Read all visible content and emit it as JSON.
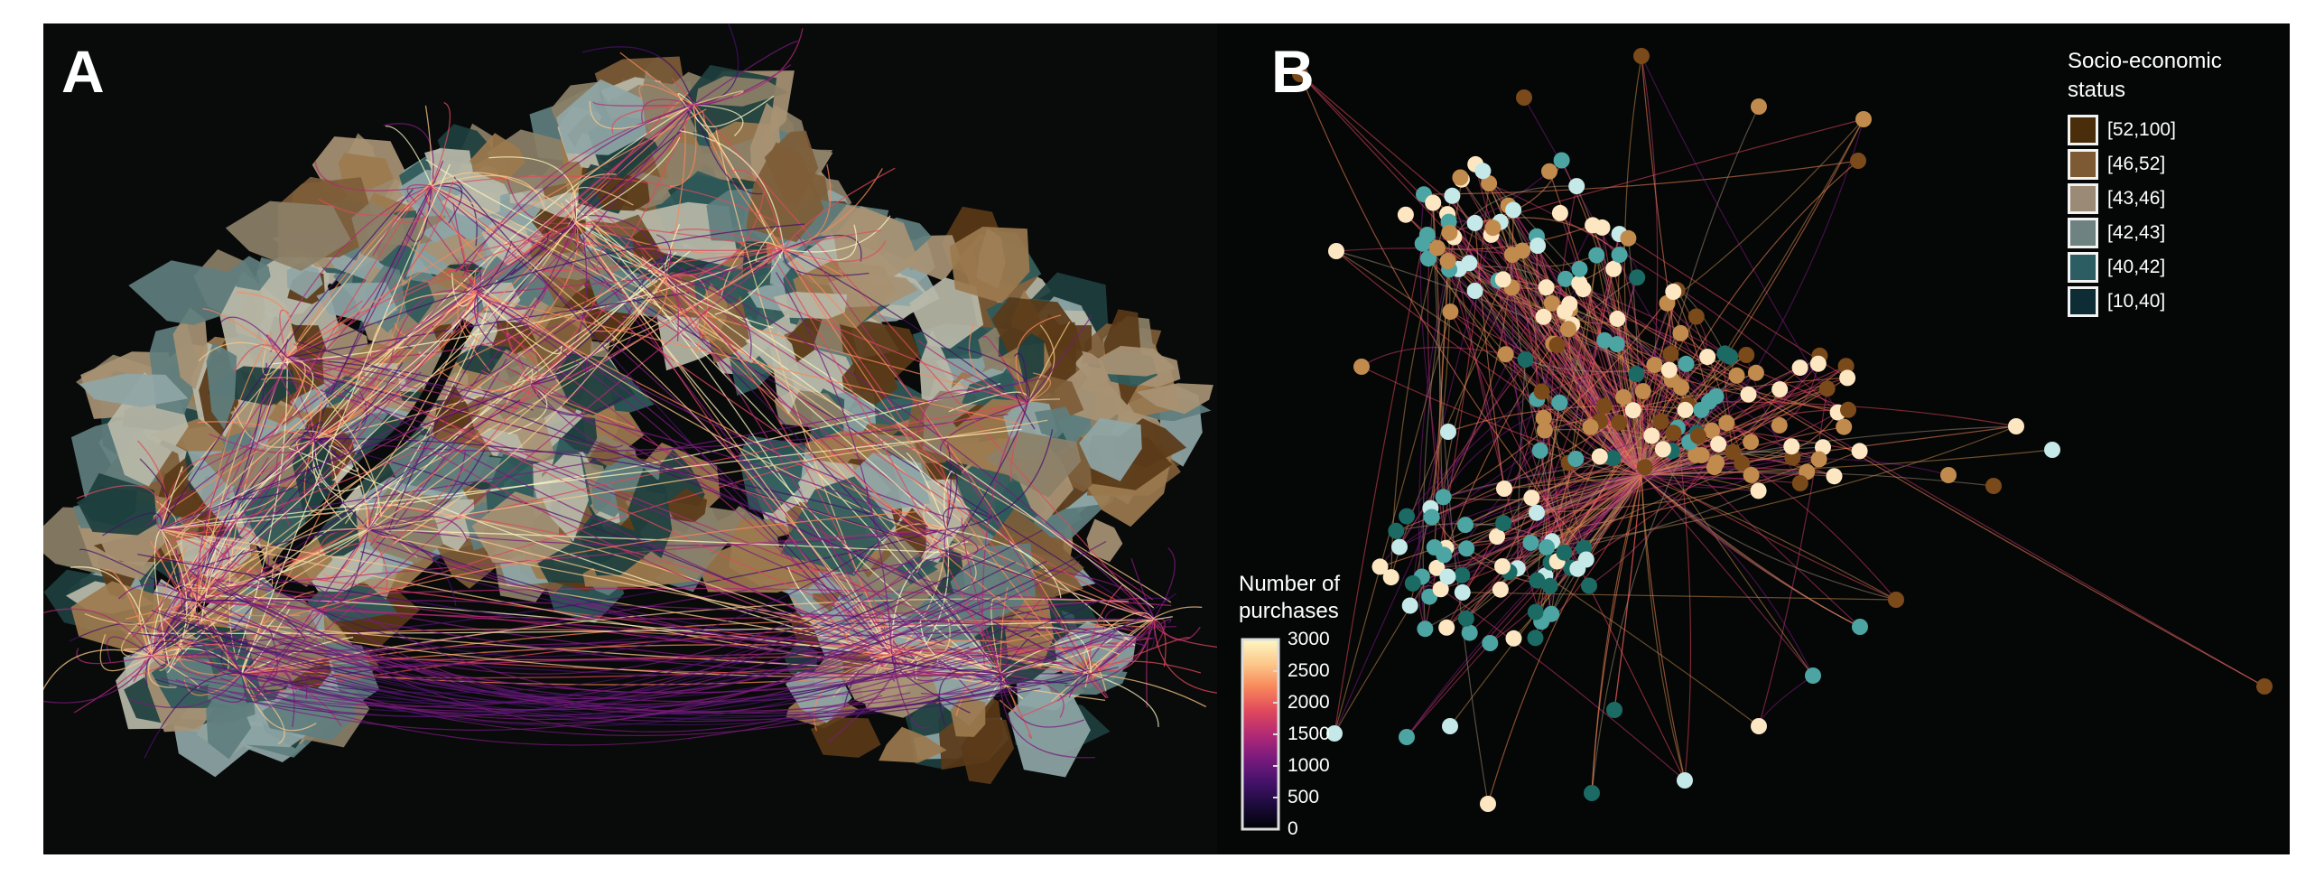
{
  "panels": [
    {
      "letter": "A",
      "name": "map-panel"
    },
    {
      "letter": "B",
      "name": "network-panel"
    }
  ],
  "colorbar": {
    "title_line1": "Number of",
    "title_line2": "purchases",
    "ticks": [
      "3000",
      "2500",
      "2000",
      "1500",
      "1000",
      "500",
      "0"
    ],
    "min": 0,
    "max": 3000,
    "colormap": [
      "#fdf8c4",
      "#fcc98c",
      "#f8885a",
      "#e0495c",
      "#b22a74",
      "#7a1b7e",
      "#45126b",
      "#1b0b3a",
      "#000004"
    ]
  },
  "legend": {
    "title_line1": "Socio-economic",
    "title_line2": "status",
    "entries": [
      {
        "label": "[52,100]",
        "color": "#4a2e0c"
      },
      {
        "label": "[46,52]",
        "color": "#7d5a33"
      },
      {
        "label": "[43,46]",
        "color": "#9b8b76"
      },
      {
        "label": "[42,43]",
        "color": "#6e8281"
      },
      {
        "label": "[40,42]",
        "color": "#2c5d63"
      },
      {
        "label": "[10,40]",
        "color": "#0e2c34"
      }
    ]
  },
  "node_colors": {
    "dark_brown": "#7a4a1a",
    "brown": "#c18b4e",
    "cream": "#fde7c2",
    "light_cyan": "#c5e9e8",
    "teal": "#4ca5a3",
    "dark_teal": "#1c6a64"
  },
  "region_colors": [
    "#5a3a18",
    "#7e5d38",
    "#a89274",
    "#8c8068",
    "#8fa6a6",
    "#5f7e7e",
    "#2f5a5a",
    "#1d3f3e",
    "#b8b8a8",
    "#9c7a4e"
  ]
}
